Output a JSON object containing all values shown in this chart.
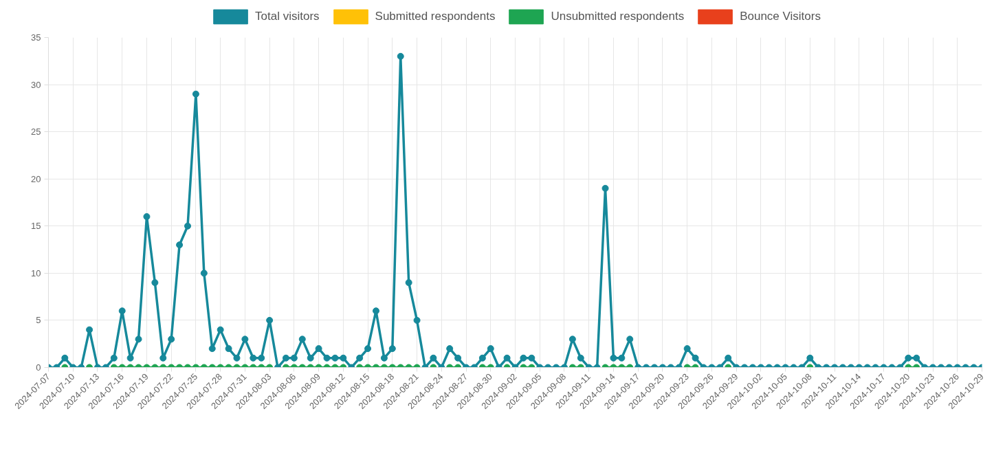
{
  "chart_data": {
    "type": "line",
    "categories": [
      "2024-07-07",
      null,
      null,
      "2024-07-10",
      null,
      null,
      "2024-07-13",
      null,
      null,
      "2024-07-16",
      null,
      null,
      "2024-07-19",
      null,
      null,
      "2024-07-22",
      null,
      null,
      "2024-07-25",
      null,
      null,
      "2024-07-28",
      null,
      null,
      "2024-07-31",
      null,
      null,
      "2024-08-03",
      null,
      null,
      "2024-08-06",
      null,
      null,
      "2024-08-09",
      null,
      null,
      "2024-08-12",
      null,
      null,
      "2024-08-15",
      null,
      null,
      "2024-08-18",
      null,
      null,
      "2024-08-21",
      null,
      null,
      "2024-08-24",
      null,
      null,
      "2024-08-27",
      null,
      null,
      "2024-08-30",
      null,
      null,
      "2024-09-02",
      null,
      null,
      "2024-09-05",
      null,
      null,
      "2024-09-08",
      null,
      null,
      "2024-09-11",
      null,
      null,
      "2024-09-14",
      null,
      null,
      "2024-09-17",
      null,
      null,
      "2024-09-20",
      null,
      null,
      "2024-09-23",
      null,
      null,
      "2024-09-26",
      null,
      null,
      "2024-09-29",
      null,
      null,
      "2024-10-02",
      null,
      null,
      "2024-10-05",
      null,
      null,
      "2024-10-08",
      null,
      null,
      "2024-10-11",
      null,
      null,
      "2024-10-14",
      null,
      null,
      "2024-10-17",
      null,
      null,
      "2024-10-20",
      null,
      null,
      "2024-10-23",
      null,
      null,
      "2024-10-26",
      null,
      null,
      "2024-10-29"
    ],
    "series": [
      {
        "name": "Total visitors",
        "color": "#16899b",
        "values": [
          0,
          0,
          1,
          0,
          0,
          4,
          0,
          0,
          1,
          6,
          1,
          3,
          16,
          9,
          1,
          3,
          13,
          15,
          29,
          10,
          2,
          4,
          2,
          1,
          3,
          1,
          1,
          5,
          0,
          1,
          1,
          3,
          1,
          2,
          1,
          1,
          1,
          0,
          1,
          2,
          6,
          1,
          2,
          33,
          9,
          5,
          0,
          1,
          0,
          2,
          1,
          0,
          0,
          1,
          2,
          0,
          1,
          0,
          1,
          1,
          0,
          0,
          0,
          0,
          3,
          1,
          0,
          0,
          19,
          1,
          1,
          3,
          0,
          0,
          0,
          0,
          0,
          0,
          2,
          1,
          0,
          0,
          0,
          1,
          0,
          0,
          0,
          0,
          0,
          0,
          0,
          0,
          0,
          1,
          0,
          0,
          0,
          0,
          0,
          0,
          0,
          0,
          0,
          0,
          0,
          1,
          1,
          0,
          0,
          0,
          0,
          0,
          0,
          0,
          0
        ]
      },
      {
        "name": "Submitted respondents",
        "color": "#ffc107",
        "values": [
          null,
          null,
          null,
          null,
          null,
          null,
          null,
          null,
          null,
          null,
          null,
          null,
          null,
          null,
          null,
          null,
          null,
          null,
          null,
          null,
          null,
          null,
          null,
          null,
          null,
          null,
          null,
          null,
          null,
          null,
          null,
          null,
          null,
          null,
          null,
          null,
          null,
          null,
          null,
          null,
          null,
          null,
          null,
          null,
          null,
          null,
          null,
          null,
          null,
          null,
          null,
          null,
          null,
          null,
          null,
          null,
          null,
          null,
          null,
          null,
          null,
          null,
          null,
          null,
          null,
          null,
          null,
          null,
          null,
          null,
          null,
          null,
          null,
          null,
          null,
          null,
          null,
          null,
          null,
          null,
          null,
          null,
          null,
          null,
          null,
          null,
          null,
          null,
          null,
          null,
          null,
          null,
          null,
          null,
          null,
          null,
          null,
          null,
          null,
          null,
          null,
          null,
          null,
          null,
          null,
          null,
          null,
          null,
          null,
          null,
          null,
          null,
          null,
          null,
          null
        ]
      },
      {
        "name": "Unsubmitted respondents",
        "color": "#1ea552",
        "values": [
          null,
          null,
          0,
          null,
          null,
          0,
          null,
          null,
          0,
          0,
          0,
          0,
          0,
          0,
          0,
          0,
          0,
          0,
          0,
          0,
          0,
          0,
          0,
          0,
          0,
          0,
          0,
          0,
          null,
          0,
          0,
          0,
          0,
          0,
          0,
          0,
          0,
          null,
          0,
          0,
          0,
          0,
          0,
          0,
          0,
          0,
          null,
          0,
          null,
          0,
          0,
          null,
          null,
          0,
          0,
          null,
          0,
          null,
          0,
          0,
          null,
          null,
          null,
          null,
          0,
          0,
          null,
          null,
          0,
          0,
          0,
          0,
          null,
          null,
          null,
          null,
          null,
          null,
          0,
          0,
          null,
          null,
          null,
          0,
          null,
          null,
          null,
          null,
          null,
          null,
          null,
          null,
          null,
          0,
          null,
          null,
          null,
          null,
          null,
          null,
          null,
          null,
          null,
          null,
          null,
          0,
          0,
          null,
          null,
          null,
          null,
          null,
          null,
          null,
          null
        ]
      },
      {
        "name": "Bounce Visitors",
        "color": "#e8401c",
        "values": [
          null,
          null,
          null,
          null,
          null,
          null,
          null,
          null,
          null,
          null,
          null,
          null,
          null,
          null,
          null,
          null,
          null,
          null,
          null,
          null,
          null,
          null,
          null,
          null,
          null,
          null,
          null,
          null,
          null,
          null,
          null,
          null,
          null,
          null,
          null,
          null,
          null,
          null,
          null,
          null,
          null,
          null,
          null,
          null,
          null,
          null,
          null,
          null,
          null,
          null,
          null,
          null,
          null,
          null,
          null,
          null,
          null,
          null,
          null,
          null,
          null,
          null,
          null,
          null,
          null,
          null,
          null,
          null,
          null,
          null,
          null,
          null,
          null,
          null,
          null,
          null,
          null,
          null,
          null,
          null,
          null,
          null,
          null,
          null,
          null,
          null,
          null,
          null,
          null,
          null,
          null,
          null,
          null,
          null,
          null,
          null,
          null,
          null,
          null,
          null,
          null,
          null,
          null,
          null,
          null,
          null,
          null,
          null,
          null,
          null,
          null,
          null,
          null,
          null,
          null
        ]
      }
    ],
    "ylim": [
      0,
      35
    ],
    "yticks": [
      0,
      5,
      10,
      15,
      20,
      25,
      30,
      35
    ],
    "grid": true,
    "legend": "top",
    "marker": "circle",
    "line_style": "solid"
  }
}
